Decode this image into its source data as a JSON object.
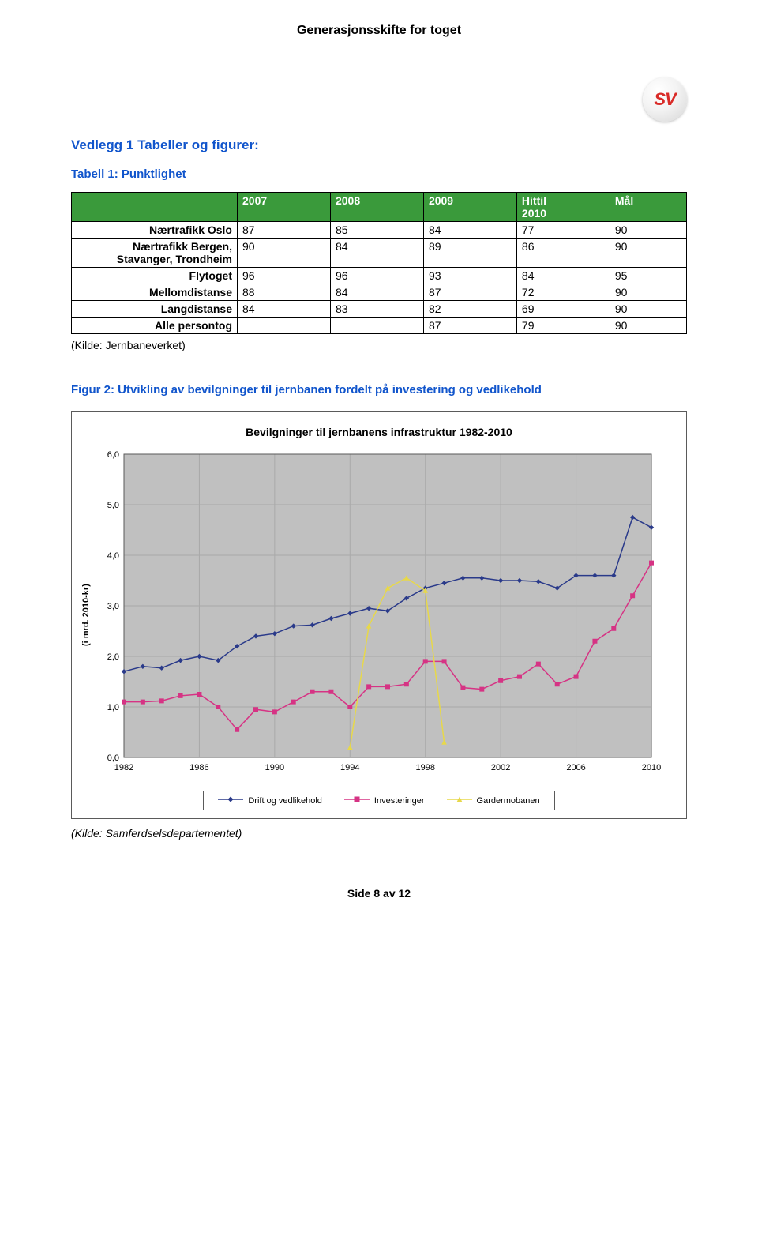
{
  "page_title": "Generasjonsskifte for toget",
  "logo_text": "SV",
  "section_heading": "Vedlegg 1 Tabeller og figurer:",
  "table": {
    "subheading": "Tabell 1: Punktlighet",
    "header_bg": "#3a9a3b",
    "columns": [
      "",
      "2007",
      "2008",
      "2009",
      "Hittil 2010",
      "Mål"
    ],
    "rows": [
      {
        "label": "Nærtrafikk Oslo",
        "cells": [
          "87",
          "85",
          "84",
          "77",
          "90"
        ]
      },
      {
        "label": "Nærtrafikk Bergen, Stavanger, Trondheim",
        "cells": [
          "90",
          "84",
          "89",
          "86",
          "90"
        ]
      },
      {
        "label": "Flytoget",
        "cells": [
          "96",
          "96",
          "93",
          "84",
          "95"
        ]
      },
      {
        "label": "Mellomdistanse",
        "cells": [
          "88",
          "84",
          "87",
          "72",
          "90"
        ]
      },
      {
        "label": "Langdistanse",
        "cells": [
          "84",
          "83",
          "82",
          "69",
          "90"
        ]
      },
      {
        "label": "Alle persontog",
        "cells": [
          "",
          "",
          "87",
          "79",
          "90"
        ]
      }
    ],
    "source": "(Kilde: Jernbaneverket)"
  },
  "figure": {
    "caption": "Figur 2: Utvikling av bevilgninger til jernbanen fordelt på investering og vedlikehold",
    "chart_title": "Bevilgninger til jernbanens infrastruktur 1982-2010",
    "ylabel": "(i mrd. 2010-kr)",
    "plot_bg": "#c0c0c0",
    "grid_color": "#a9a9a9",
    "border_color": "#5a5a5a",
    "xlim": [
      1982,
      2010
    ],
    "ylim": [
      0.0,
      6.0
    ],
    "ytick_step": 1.0,
    "xtick_step": 4,
    "line_width": 1.5,
    "marker_size": 5,
    "series": [
      {
        "name": "Drift og vedlikehold",
        "color": "#2a3a8a",
        "marker": "diamond",
        "x": [
          1982,
          1983,
          1984,
          1985,
          1986,
          1987,
          1988,
          1989,
          1990,
          1991,
          1992,
          1993,
          1994,
          1995,
          1996,
          1997,
          1998,
          1999,
          2000,
          2001,
          2002,
          2003,
          2004,
          2005,
          2006,
          2007,
          2008,
          2009,
          2010
        ],
        "y": [
          1.7,
          1.8,
          1.77,
          1.92,
          2.0,
          1.92,
          2.2,
          2.4,
          2.45,
          2.6,
          2.62,
          2.75,
          2.85,
          2.95,
          2.9,
          3.15,
          3.35,
          3.45,
          3.55,
          3.55,
          3.5,
          3.5,
          3.48,
          3.35,
          3.6,
          3.6,
          3.6,
          4.75,
          4.55
        ]
      },
      {
        "name": "Investeringer",
        "color": "#d63384",
        "marker": "square",
        "x": [
          1982,
          1983,
          1984,
          1985,
          1986,
          1987,
          1988,
          1989,
          1990,
          1991,
          1992,
          1993,
          1994,
          1995,
          1996,
          1997,
          1998,
          1999,
          2000,
          2001,
          2002,
          2003,
          2004,
          2005,
          2006,
          2007,
          2008,
          2009,
          2010
        ],
        "y": [
          1.1,
          1.1,
          1.12,
          1.22,
          1.25,
          1.0,
          0.55,
          0.95,
          0.9,
          1.1,
          1.3,
          1.3,
          1.0,
          1.4,
          1.4,
          1.45,
          1.9,
          1.9,
          1.38,
          1.35,
          1.52,
          1.6,
          1.85,
          1.45,
          1.6,
          2.3,
          2.55,
          3.2,
          3.85
        ]
      },
      {
        "name": "Gardermobanen",
        "color": "#e7d84a",
        "marker": "triangle",
        "x": [
          1994,
          1995,
          1996,
          1997,
          1998,
          1999
        ],
        "y": [
          0.2,
          2.6,
          3.35,
          3.55,
          3.3,
          0.3
        ]
      }
    ],
    "legend": [
      "Drift og vedlikehold",
      "Investeringer",
      "Gardermobanen"
    ],
    "source": "(Kilde: Samferdselsdepartementet)"
  },
  "page_number": "Side 8 av 12"
}
